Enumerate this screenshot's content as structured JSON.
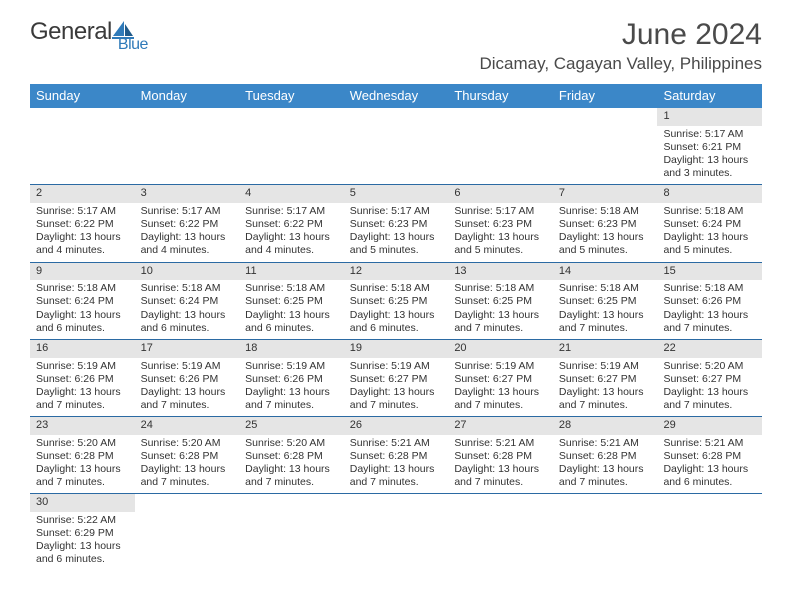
{
  "brand": {
    "part1": "General",
    "part2": "Blue"
  },
  "title": "June 2024",
  "location": "Dicamay, Cagayan Valley, Philippines",
  "colors": {
    "header_bg": "#3b87c8",
    "header_text": "#ffffff",
    "daynum_bg": "#e5e5e5",
    "row_border": "#2b6aa3",
    "brand_blue": "#2f7ab9",
    "text": "#333333"
  },
  "day_names": [
    "Sunday",
    "Monday",
    "Tuesday",
    "Wednesday",
    "Thursday",
    "Friday",
    "Saturday"
  ],
  "weeks": [
    [
      null,
      null,
      null,
      null,
      null,
      null,
      {
        "n": "1",
        "sr": "5:17 AM",
        "ss": "6:21 PM",
        "dl": "13 hours and 3 minutes."
      }
    ],
    [
      {
        "n": "2",
        "sr": "5:17 AM",
        "ss": "6:22 PM",
        "dl": "13 hours and 4 minutes."
      },
      {
        "n": "3",
        "sr": "5:17 AM",
        "ss": "6:22 PM",
        "dl": "13 hours and 4 minutes."
      },
      {
        "n": "4",
        "sr": "5:17 AM",
        "ss": "6:22 PM",
        "dl": "13 hours and 4 minutes."
      },
      {
        "n": "5",
        "sr": "5:17 AM",
        "ss": "6:23 PM",
        "dl": "13 hours and 5 minutes."
      },
      {
        "n": "6",
        "sr": "5:17 AM",
        "ss": "6:23 PM",
        "dl": "13 hours and 5 minutes."
      },
      {
        "n": "7",
        "sr": "5:18 AM",
        "ss": "6:23 PM",
        "dl": "13 hours and 5 minutes."
      },
      {
        "n": "8",
        "sr": "5:18 AM",
        "ss": "6:24 PM",
        "dl": "13 hours and 5 minutes."
      }
    ],
    [
      {
        "n": "9",
        "sr": "5:18 AM",
        "ss": "6:24 PM",
        "dl": "13 hours and 6 minutes."
      },
      {
        "n": "10",
        "sr": "5:18 AM",
        "ss": "6:24 PM",
        "dl": "13 hours and 6 minutes."
      },
      {
        "n": "11",
        "sr": "5:18 AM",
        "ss": "6:25 PM",
        "dl": "13 hours and 6 minutes."
      },
      {
        "n": "12",
        "sr": "5:18 AM",
        "ss": "6:25 PM",
        "dl": "13 hours and 6 minutes."
      },
      {
        "n": "13",
        "sr": "5:18 AM",
        "ss": "6:25 PM",
        "dl": "13 hours and 7 minutes."
      },
      {
        "n": "14",
        "sr": "5:18 AM",
        "ss": "6:25 PM",
        "dl": "13 hours and 7 minutes."
      },
      {
        "n": "15",
        "sr": "5:18 AM",
        "ss": "6:26 PM",
        "dl": "13 hours and 7 minutes."
      }
    ],
    [
      {
        "n": "16",
        "sr": "5:19 AM",
        "ss": "6:26 PM",
        "dl": "13 hours and 7 minutes."
      },
      {
        "n": "17",
        "sr": "5:19 AM",
        "ss": "6:26 PM",
        "dl": "13 hours and 7 minutes."
      },
      {
        "n": "18",
        "sr": "5:19 AM",
        "ss": "6:26 PM",
        "dl": "13 hours and 7 minutes."
      },
      {
        "n": "19",
        "sr": "5:19 AM",
        "ss": "6:27 PM",
        "dl": "13 hours and 7 minutes."
      },
      {
        "n": "20",
        "sr": "5:19 AM",
        "ss": "6:27 PM",
        "dl": "13 hours and 7 minutes."
      },
      {
        "n": "21",
        "sr": "5:19 AM",
        "ss": "6:27 PM",
        "dl": "13 hours and 7 minutes."
      },
      {
        "n": "22",
        "sr": "5:20 AM",
        "ss": "6:27 PM",
        "dl": "13 hours and 7 minutes."
      }
    ],
    [
      {
        "n": "23",
        "sr": "5:20 AM",
        "ss": "6:28 PM",
        "dl": "13 hours and 7 minutes."
      },
      {
        "n": "24",
        "sr": "5:20 AM",
        "ss": "6:28 PM",
        "dl": "13 hours and 7 minutes."
      },
      {
        "n": "25",
        "sr": "5:20 AM",
        "ss": "6:28 PM",
        "dl": "13 hours and 7 minutes."
      },
      {
        "n": "26",
        "sr": "5:21 AM",
        "ss": "6:28 PM",
        "dl": "13 hours and 7 minutes."
      },
      {
        "n": "27",
        "sr": "5:21 AM",
        "ss": "6:28 PM",
        "dl": "13 hours and 7 minutes."
      },
      {
        "n": "28",
        "sr": "5:21 AM",
        "ss": "6:28 PM",
        "dl": "13 hours and 7 minutes."
      },
      {
        "n": "29",
        "sr": "5:21 AM",
        "ss": "6:28 PM",
        "dl": "13 hours and 6 minutes."
      }
    ],
    [
      {
        "n": "30",
        "sr": "5:22 AM",
        "ss": "6:29 PM",
        "dl": "13 hours and 6 minutes."
      },
      null,
      null,
      null,
      null,
      null,
      null
    ]
  ],
  "labels": {
    "sunrise": "Sunrise: ",
    "sunset": "Sunset: ",
    "daylight": "Daylight: "
  }
}
